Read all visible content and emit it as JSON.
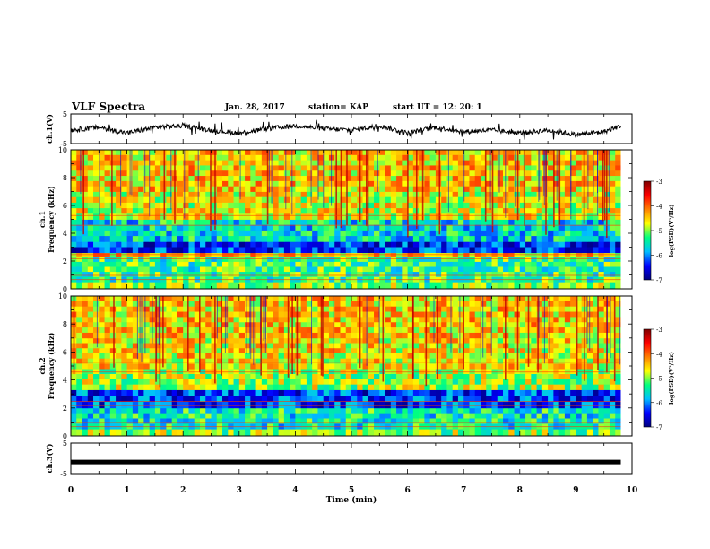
{
  "header": {
    "title": "VLF Spectra",
    "date": "Jan. 28, 2017",
    "station": "station= KAP",
    "start_ut": "start UT =   12: 20: 1"
  },
  "colors": {
    "background": "#ffffff",
    "frame": "#000000",
    "waveform": "#000000",
    "colormap": [
      "#00007f",
      "#0000ff",
      "#00bfff",
      "#00ff80",
      "#ffff00",
      "#ff8000",
      "#ff0000",
      "#7f0000"
    ]
  },
  "chart_data": [
    {
      "type": "line",
      "panel": "ch1-waveform",
      "ylabel": "ch.1(V)",
      "ylim": [
        -5,
        5
      ],
      "y_ticks": [
        "5",
        "-5"
      ],
      "xlim": [
        0,
        10
      ],
      "x": [
        0,
        0.5,
        1,
        1.5,
        2,
        2.5,
        3,
        3.5,
        4,
        4.5,
        5,
        5.5,
        6,
        6.5,
        7,
        7.5,
        8,
        8.5,
        9,
        9.5,
        9.8
      ],
      "y": [
        -0.5,
        0.5,
        -1.5,
        0.5,
        1.0,
        -0.5,
        -1.5,
        0.0,
        1.0,
        0.0,
        -0.5,
        1.0,
        -1.5,
        0.5,
        -1.0,
        -0.5,
        -1.5,
        -0.5,
        -2.0,
        -1.0,
        1.0
      ],
      "description": "noisy signal fluctuating roughly between -3 and +2 V"
    },
    {
      "type": "heatmap",
      "panel": "ch1-spectrogram",
      "ylabel": "ch.1\nFrequency (kHz)",
      "ylim": [
        0,
        10
      ],
      "y_ticks": [
        "0",
        "2",
        "4",
        "6",
        "8",
        "10"
      ],
      "xlim": [
        0,
        9.8
      ],
      "colorbar": {
        "label": "log(PSD)(V²/Hz)",
        "range": [
          -7,
          -3
        ],
        "ticks": [
          "-3",
          "-4",
          "-5",
          "-6",
          "-7"
        ]
      },
      "bands_khz": [
        {
          "from": 0,
          "to": 0.5,
          "level": -5.0
        },
        {
          "from": 0.5,
          "to": 2.3,
          "level": -5.3
        },
        {
          "from": 2.3,
          "to": 2.6,
          "level": -4.5
        },
        {
          "from": 2.6,
          "to": 3.4,
          "level": -6.3
        },
        {
          "from": 3.4,
          "to": 5.0,
          "level": -5.6
        },
        {
          "from": 5.0,
          "to": 7.0,
          "level": -4.7
        },
        {
          "from": 7.0,
          "to": 10,
          "level": -4.5
        }
      ]
    },
    {
      "type": "heatmap",
      "panel": "ch2-spectrogram",
      "ylabel": "ch.2\nFrequency (kHz)",
      "ylim": [
        0,
        10
      ],
      "y_ticks": [
        "0",
        "2",
        "4",
        "6",
        "8",
        "10"
      ],
      "xlim": [
        0,
        9.8
      ],
      "colorbar": {
        "label": "log(PSD)(V²/Hz)",
        "range": [
          -7,
          -3
        ],
        "ticks": [
          "-3",
          "-4",
          "-5",
          "-6",
          "-7"
        ]
      },
      "bands_khz": [
        {
          "from": 0,
          "to": 0.5,
          "level": -5.0
        },
        {
          "from": 0.5,
          "to": 2.0,
          "level": -5.5
        },
        {
          "from": 2.0,
          "to": 3.3,
          "level": -6.3
        },
        {
          "from": 3.3,
          "to": 4.8,
          "level": -4.9
        },
        {
          "from": 4.8,
          "to": 7.0,
          "level": -4.6
        },
        {
          "from": 7.0,
          "to": 10,
          "level": -4.5
        }
      ]
    },
    {
      "type": "line",
      "panel": "ch3-waveform",
      "ylabel": "ch.3(V)",
      "ylim": [
        -5,
        5
      ],
      "y_ticks": [
        "5",
        "-5"
      ],
      "xlim": [
        0,
        10
      ],
      "x": [
        0,
        9.8
      ],
      "y": [
        -1.2,
        -1.2
      ]
    }
  ],
  "x_axis": {
    "label": "Time (min)",
    "ticks": [
      "0",
      "1",
      "2",
      "3",
      "4",
      "5",
      "6",
      "7",
      "8",
      "9",
      "10"
    ]
  }
}
